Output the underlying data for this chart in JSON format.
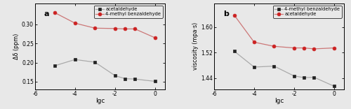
{
  "fig_width": 5.0,
  "fig_height": 1.56,
  "fig_dpi": 100,
  "bg_color": "#e8e8e8",
  "panel_a": {
    "label": "a",
    "xlabel": "lgc",
    "ylabel": "Δδ (ppm)",
    "xlim": [
      -6,
      0.5
    ],
    "ylim": [
      0.13,
      0.355
    ],
    "xticks": [
      -6,
      -4,
      -2,
      0
    ],
    "yticks": [
      0.15,
      0.2,
      0.25,
      0.3
    ],
    "ytick_labels": [
      "0.15",
      "0.20",
      "0.25",
      "0.30"
    ],
    "series": [
      {
        "label": "acetaldehyde",
        "line_color": "#aaaaaa",
        "marker": "s",
        "marker_face": "#222222",
        "marker_edge": "#222222",
        "x": [
          -5,
          -4,
          -3,
          -2,
          -1.5,
          -1,
          0
        ],
        "y": [
          0.192,
          0.208,
          0.201,
          0.166,
          0.158,
          0.157,
          0.151
        ]
      },
      {
        "label": "4-methyl benzaldehyde",
        "line_color": "#cc7777",
        "marker": "o",
        "marker_face": "#cc2222",
        "marker_edge": "#cc2222",
        "x": [
          -5,
          -4,
          -3,
          -2,
          -1.5,
          -1,
          0
        ],
        "y": [
          0.33,
          0.303,
          0.29,
          0.289,
          0.288,
          0.288,
          0.265
        ]
      }
    ]
  },
  "panel_b": {
    "label": "b",
    "xlabel": "lgc",
    "ylabel": "viscosity (mpa·s)",
    "xlim": [
      -6,
      0.5
    ],
    "ylim": [
      1.405,
      1.675
    ],
    "xticks": [
      -6,
      -4,
      -2,
      0
    ],
    "yticks": [
      1.44,
      1.52,
      1.6
    ],
    "ytick_labels": [
      "1.44",
      "1.52",
      "1.60"
    ],
    "series": [
      {
        "label": "4-methyl benzaldehyde",
        "line_color": "#aaaaaa",
        "marker": "s",
        "marker_face": "#222222",
        "marker_edge": "#222222",
        "x": [
          -5,
          -4,
          -3,
          -2,
          -1.5,
          -1,
          0
        ],
        "y": [
          1.525,
          1.475,
          1.478,
          1.447,
          1.442,
          1.443,
          1.415
        ]
      },
      {
        "label": "acetaldehyde",
        "line_color": "#cc7777",
        "marker": "o",
        "marker_face": "#cc2222",
        "marker_edge": "#cc2222",
        "x": [
          -5,
          -4,
          -3,
          -2,
          -1.5,
          -1,
          0
        ],
        "y": [
          1.638,
          1.553,
          1.54,
          1.535,
          1.535,
          1.532,
          1.535
        ]
      }
    ]
  }
}
